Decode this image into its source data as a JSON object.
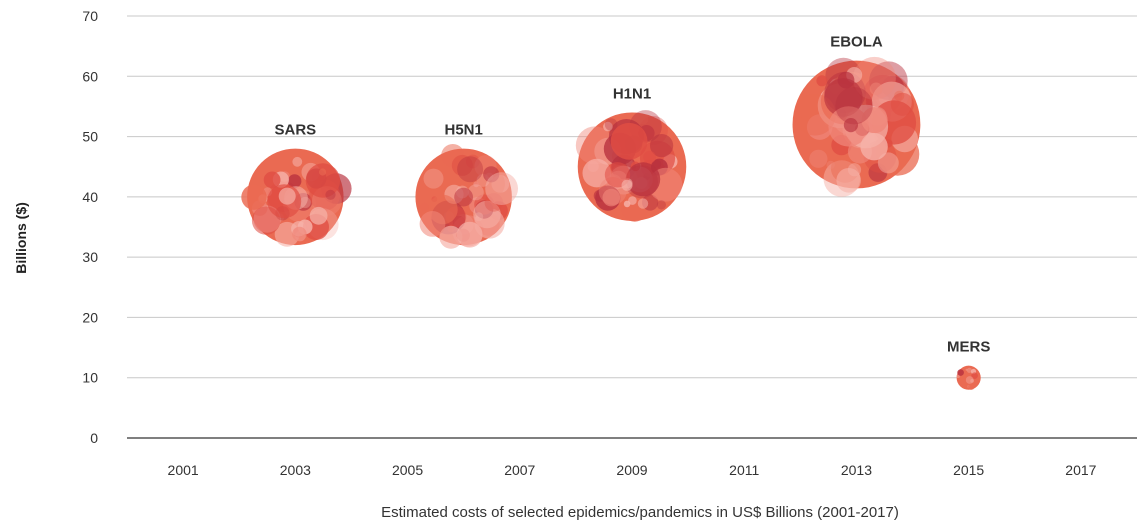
{
  "chart_data": {
    "type": "scatter",
    "title": "",
    "xlabel": "Estimated costs of selected epidemics/pandemics in US$ Billions (2001-2017)",
    "ylabel": "Billions ($)",
    "xlim": [
      2000,
      2018
    ],
    "ylim": [
      0,
      70
    ],
    "x_ticks": [
      2001,
      2003,
      2005,
      2007,
      2009,
      2011,
      2013,
      2015,
      2017
    ],
    "y_ticks": [
      0,
      10,
      20,
      30,
      40,
      50,
      60,
      70
    ],
    "grid": "horizontal",
    "points": [
      {
        "label": "SARS",
        "x": 2003,
        "y": 40,
        "size": 40
      },
      {
        "label": "H5N1",
        "x": 2006,
        "y": 40,
        "size": 40
      },
      {
        "label": "H1N1",
        "x": 2009,
        "y": 45,
        "size": 45
      },
      {
        "label": "EBOLA",
        "x": 2013,
        "y": 52,
        "size": 53
      },
      {
        "label": "MERS",
        "x": 2015,
        "y": 10,
        "size": 10
      }
    ],
    "colors": {
      "bubble": "#ea6a52",
      "light": "#f6b2a9",
      "dark": "#b8313e",
      "grid": "#c8c8c8",
      "axis": "#555555"
    }
  }
}
